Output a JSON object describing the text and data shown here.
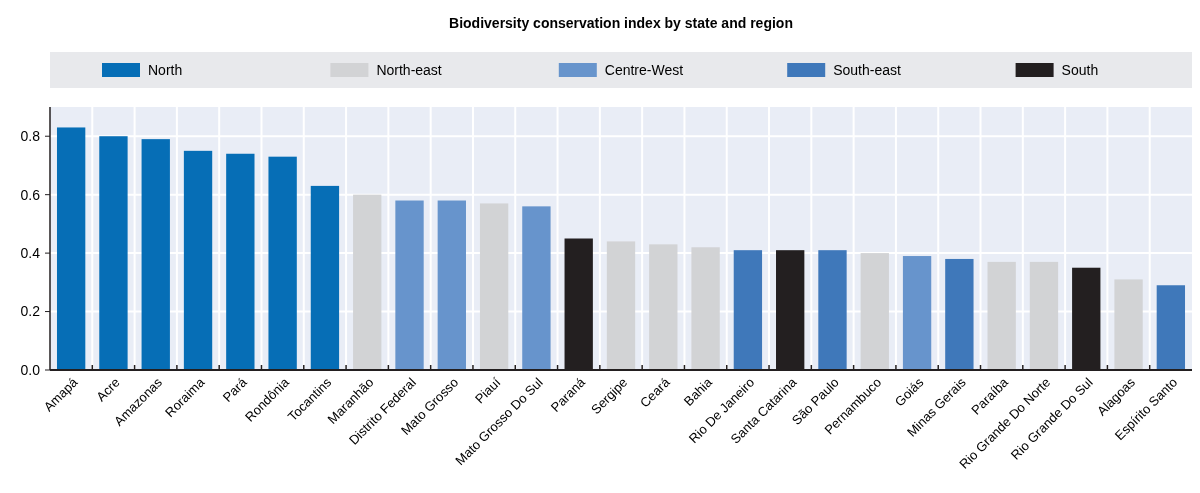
{
  "chart_data": {
    "type": "bar",
    "title": "Biodiversity conservation index by state and region",
    "categories": [
      "Amapá",
      "Acre",
      "Amazonas",
      "Roraima",
      "Pará",
      "Rondônia",
      "Tocantins",
      "Maranhão",
      "Distrito Federal",
      "Mato Grosso",
      "Piauí",
      "Mato Grosso Do Sul",
      "Paraná",
      "Sergipe",
      "Ceará",
      "Bahia",
      "Rio De Janeiro",
      "Santa Catarina",
      "São Paulo",
      "Pernambuco",
      "Goiás",
      "Minas Gerais",
      "Paraíba",
      "Rio Grande Do Norte",
      "Rio Grande Do Sul",
      "Alagoas",
      "Espírito Santo"
    ],
    "series": [
      {
        "name": "North",
        "color": "#066eb6",
        "values": [
          0.83,
          0.8,
          0.79,
          0.75,
          0.74,
          0.73,
          0.63,
          null,
          null,
          null,
          null,
          null,
          null,
          null,
          null,
          null,
          null,
          null,
          null,
          null,
          null,
          null,
          null,
          null,
          null,
          null,
          null
        ]
      },
      {
        "name": "North-east",
        "color": "#d2d3d5",
        "values": [
          null,
          null,
          null,
          null,
          null,
          null,
          null,
          0.6,
          null,
          null,
          0.57,
          null,
          null,
          0.44,
          0.43,
          0.42,
          null,
          null,
          null,
          0.4,
          null,
          null,
          0.37,
          0.37,
          null,
          0.31,
          null
        ]
      },
      {
        "name": "Centre-West",
        "color": "#6794cc",
        "values": [
          null,
          null,
          null,
          null,
          null,
          null,
          null,
          null,
          0.58,
          0.58,
          null,
          0.56,
          null,
          null,
          null,
          null,
          null,
          null,
          null,
          null,
          0.39,
          null,
          null,
          null,
          null,
          null,
          null
        ]
      },
      {
        "name": "South-east",
        "color": "#3f78ba",
        "values": [
          null,
          null,
          null,
          null,
          null,
          null,
          null,
          null,
          null,
          null,
          null,
          null,
          null,
          null,
          null,
          null,
          0.41,
          null,
          0.41,
          null,
          null,
          0.38,
          null,
          null,
          null,
          null,
          0.29
        ]
      },
      {
        "name": "South",
        "color": "#231f20",
        "values": [
          null,
          null,
          null,
          null,
          null,
          null,
          null,
          null,
          null,
          null,
          null,
          null,
          0.45,
          null,
          null,
          null,
          null,
          0.41,
          null,
          null,
          null,
          null,
          null,
          null,
          0.35,
          null,
          null
        ]
      }
    ],
    "ylim": [
      0,
      0.9
    ],
    "yticks": [
      {
        "value": 0,
        "label": "0.0"
      },
      0.2,
      0.4,
      0.6,
      0.8
    ],
    "grid": true,
    "legend": "top"
  }
}
